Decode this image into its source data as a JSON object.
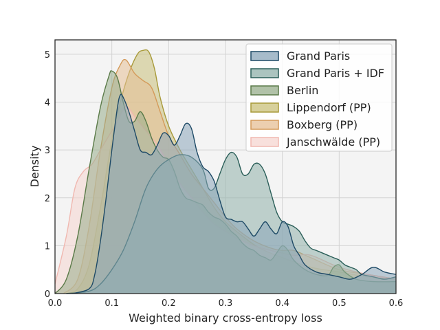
{
  "chart_data": {
    "type": "area",
    "xlabel": "Weighted binary cross-entropy loss",
    "ylabel": "Density",
    "xlim": [
      0.0,
      0.6
    ],
    "ylim": [
      0,
      5.3
    ],
    "xticks": [
      "0.0",
      "0.1",
      "0.2",
      "0.3",
      "0.4",
      "0.5",
      "0.6"
    ],
    "yticks": [
      "0",
      "1",
      "2",
      "3",
      "4",
      "5"
    ],
    "grid": true,
    "legend_position": "top-right",
    "series": [
      {
        "name": "Lippendorf (PP)",
        "color": "#a89a3a",
        "fill": "#c9c07a",
        "points": [
          [
            0.02,
            0
          ],
          [
            0.04,
            0.1
          ],
          [
            0.06,
            0.6
          ],
          [
            0.08,
            1.8
          ],
          [
            0.1,
            3.2
          ],
          [
            0.115,
            4.0
          ],
          [
            0.13,
            4.6
          ],
          [
            0.145,
            5.0
          ],
          [
            0.155,
            5.08
          ],
          [
            0.165,
            5.05
          ],
          [
            0.175,
            4.7
          ],
          [
            0.185,
            4.1
          ],
          [
            0.2,
            3.5
          ],
          [
            0.22,
            3.0
          ],
          [
            0.24,
            2.6
          ],
          [
            0.26,
            2.2
          ],
          [
            0.28,
            1.8
          ],
          [
            0.3,
            1.5
          ],
          [
            0.33,
            1.2
          ],
          [
            0.36,
            0.95
          ],
          [
            0.4,
            0.75
          ],
          [
            0.45,
            0.55
          ],
          [
            0.5,
            0.45
          ],
          [
            0.55,
            0.35
          ],
          [
            0.6,
            0.3
          ]
        ]
      },
      {
        "name": "Boxberg (PP)",
        "color": "#d49a5a",
        "fill": "#e6bf95",
        "points": [
          [
            0.015,
            0
          ],
          [
            0.04,
            0.3
          ],
          [
            0.06,
            1.4
          ],
          [
            0.08,
            3.0
          ],
          [
            0.1,
            4.3
          ],
          [
            0.115,
            4.78
          ],
          [
            0.125,
            4.88
          ],
          [
            0.14,
            4.6
          ],
          [
            0.155,
            4.45
          ],
          [
            0.17,
            4.3
          ],
          [
            0.185,
            3.8
          ],
          [
            0.2,
            3.3
          ],
          [
            0.22,
            2.9
          ],
          [
            0.24,
            2.5
          ],
          [
            0.26,
            2.2
          ],
          [
            0.28,
            1.9
          ],
          [
            0.3,
            1.6
          ],
          [
            0.32,
            1.35
          ],
          [
            0.35,
            1.1
          ],
          [
            0.38,
            0.95
          ],
          [
            0.4,
            0.9
          ],
          [
            0.42,
            0.9
          ],
          [
            0.45,
            0.75
          ],
          [
            0.5,
            0.5
          ],
          [
            0.55,
            0.4
          ],
          [
            0.6,
            0.3
          ]
        ]
      },
      {
        "name": "Janschwälde (PP)",
        "color": "#f0b8b0",
        "fill": "#f6d6d0",
        "points": [
          [
            0.0,
            0.2
          ],
          [
            0.02,
            1.2
          ],
          [
            0.035,
            2.2
          ],
          [
            0.05,
            2.55
          ],
          [
            0.065,
            2.7
          ],
          [
            0.08,
            3.0
          ],
          [
            0.095,
            3.3
          ],
          [
            0.11,
            3.6
          ],
          [
            0.125,
            3.9
          ],
          [
            0.14,
            3.7
          ],
          [
            0.16,
            3.4
          ],
          [
            0.18,
            3.1
          ],
          [
            0.2,
            2.7
          ],
          [
            0.22,
            2.3
          ],
          [
            0.24,
            2.0
          ],
          [
            0.26,
            1.7
          ],
          [
            0.28,
            1.45
          ],
          [
            0.3,
            1.3
          ],
          [
            0.32,
            1.15
          ],
          [
            0.35,
            1.0
          ],
          [
            0.38,
            0.9
          ],
          [
            0.42,
            0.8
          ],
          [
            0.45,
            0.8
          ],
          [
            0.5,
            0.55
          ],
          [
            0.55,
            0.4
          ],
          [
            0.6,
            0.3
          ]
        ]
      },
      {
        "name": "Berlin",
        "color": "#5a7a48",
        "fill": "#97ad8b",
        "points": [
          [
            0.0,
            0
          ],
          [
            0.02,
            0.3
          ],
          [
            0.04,
            1.2
          ],
          [
            0.06,
            2.6
          ],
          [
            0.08,
            3.9
          ],
          [
            0.095,
            4.55
          ],
          [
            0.1,
            4.65
          ],
          [
            0.11,
            4.5
          ],
          [
            0.12,
            4.0
          ],
          [
            0.13,
            3.6
          ],
          [
            0.14,
            3.6
          ],
          [
            0.15,
            3.8
          ],
          [
            0.16,
            3.6
          ],
          [
            0.17,
            3.25
          ],
          [
            0.18,
            3.0
          ],
          [
            0.19,
            2.85
          ],
          [
            0.2,
            2.8
          ],
          [
            0.21,
            2.55
          ],
          [
            0.22,
            2.2
          ],
          [
            0.23,
            2.0
          ],
          [
            0.24,
            1.95
          ],
          [
            0.25,
            1.9
          ],
          [
            0.26,
            1.85
          ],
          [
            0.27,
            1.7
          ],
          [
            0.28,
            1.6
          ],
          [
            0.29,
            1.55
          ],
          [
            0.3,
            1.45
          ],
          [
            0.31,
            1.3
          ],
          [
            0.32,
            1.2
          ],
          [
            0.33,
            1.05
          ],
          [
            0.34,
            0.95
          ],
          [
            0.35,
            0.9
          ],
          [
            0.36,
            0.8
          ],
          [
            0.37,
            0.75
          ],
          [
            0.38,
            0.7
          ],
          [
            0.39,
            0.85
          ],
          [
            0.4,
            1.0
          ],
          [
            0.41,
            0.9
          ],
          [
            0.42,
            0.7
          ],
          [
            0.44,
            0.5
          ],
          [
            0.46,
            0.4
          ],
          [
            0.48,
            0.38
          ],
          [
            0.49,
            0.55
          ],
          [
            0.5,
            0.6
          ],
          [
            0.51,
            0.45
          ],
          [
            0.53,
            0.3
          ],
          [
            0.56,
            0.25
          ],
          [
            0.6,
            0.25
          ]
        ]
      },
      {
        "name": "Grand Paris + IDF",
        "color": "#2a5e58",
        "fill": "#8fb0aa",
        "points": [
          [
            0.02,
            0
          ],
          [
            0.06,
            0.05
          ],
          [
            0.08,
            0.2
          ],
          [
            0.1,
            0.5
          ],
          [
            0.12,
            0.9
          ],
          [
            0.14,
            1.5
          ],
          [
            0.16,
            2.2
          ],
          [
            0.18,
            2.6
          ],
          [
            0.2,
            2.8
          ],
          [
            0.22,
            2.9
          ],
          [
            0.24,
            2.85
          ],
          [
            0.26,
            2.6
          ],
          [
            0.27,
            2.2
          ],
          [
            0.28,
            2.2
          ],
          [
            0.29,
            2.5
          ],
          [
            0.3,
            2.8
          ],
          [
            0.31,
            2.95
          ],
          [
            0.32,
            2.85
          ],
          [
            0.33,
            2.5
          ],
          [
            0.34,
            2.5
          ],
          [
            0.35,
            2.7
          ],
          [
            0.36,
            2.7
          ],
          [
            0.37,
            2.5
          ],
          [
            0.38,
            2.1
          ],
          [
            0.39,
            1.7
          ],
          [
            0.4,
            1.5
          ],
          [
            0.41,
            1.45
          ],
          [
            0.42,
            1.4
          ],
          [
            0.43,
            1.3
          ],
          [
            0.44,
            1.1
          ],
          [
            0.45,
            0.95
          ],
          [
            0.46,
            0.9
          ],
          [
            0.47,
            0.85
          ],
          [
            0.48,
            0.8
          ],
          [
            0.49,
            0.75
          ],
          [
            0.5,
            0.7
          ],
          [
            0.51,
            0.6
          ],
          [
            0.52,
            0.55
          ],
          [
            0.53,
            0.5
          ],
          [
            0.54,
            0.4
          ],
          [
            0.56,
            0.35
          ],
          [
            0.58,
            0.3
          ],
          [
            0.6,
            0.35
          ]
        ]
      },
      {
        "name": "Grand Paris",
        "color": "#1e4a66",
        "fill": "#8aa6ba",
        "points": [
          [
            0.03,
            0
          ],
          [
            0.06,
            0.1
          ],
          [
            0.07,
            0.4
          ],
          [
            0.08,
            1.1
          ],
          [
            0.09,
            2.0
          ],
          [
            0.1,
            3.0
          ],
          [
            0.11,
            3.9
          ],
          [
            0.115,
            4.15
          ],
          [
            0.12,
            4.1
          ],
          [
            0.13,
            3.8
          ],
          [
            0.14,
            3.4
          ],
          [
            0.15,
            3.0
          ],
          [
            0.16,
            2.95
          ],
          [
            0.17,
            2.9
          ],
          [
            0.18,
            3.1
          ],
          [
            0.19,
            3.35
          ],
          [
            0.2,
            3.3
          ],
          [
            0.21,
            3.1
          ],
          [
            0.22,
            3.3
          ],
          [
            0.23,
            3.55
          ],
          [
            0.24,
            3.45
          ],
          [
            0.25,
            2.95
          ],
          [
            0.26,
            2.65
          ],
          [
            0.27,
            2.55
          ],
          [
            0.28,
            2.35
          ],
          [
            0.29,
            1.95
          ],
          [
            0.3,
            1.6
          ],
          [
            0.31,
            1.55
          ],
          [
            0.32,
            1.5
          ],
          [
            0.33,
            1.5
          ],
          [
            0.34,
            1.35
          ],
          [
            0.35,
            1.2
          ],
          [
            0.36,
            1.35
          ],
          [
            0.37,
            1.5
          ],
          [
            0.38,
            1.35
          ],
          [
            0.39,
            1.25
          ],
          [
            0.4,
            1.5
          ],
          [
            0.41,
            1.4
          ],
          [
            0.42,
            1.0
          ],
          [
            0.43,
            0.8
          ],
          [
            0.44,
            0.6
          ],
          [
            0.46,
            0.45
          ],
          [
            0.48,
            0.4
          ],
          [
            0.5,
            0.35
          ],
          [
            0.52,
            0.3
          ],
          [
            0.54,
            0.4
          ],
          [
            0.56,
            0.55
          ],
          [
            0.58,
            0.45
          ],
          [
            0.6,
            0.4
          ]
        ]
      }
    ],
    "legend_order": [
      "Grand Paris",
      "Grand Paris + IDF",
      "Berlin",
      "Lippendorf (PP)",
      "Boxberg (PP)",
      "Janschwälde (PP)"
    ]
  }
}
